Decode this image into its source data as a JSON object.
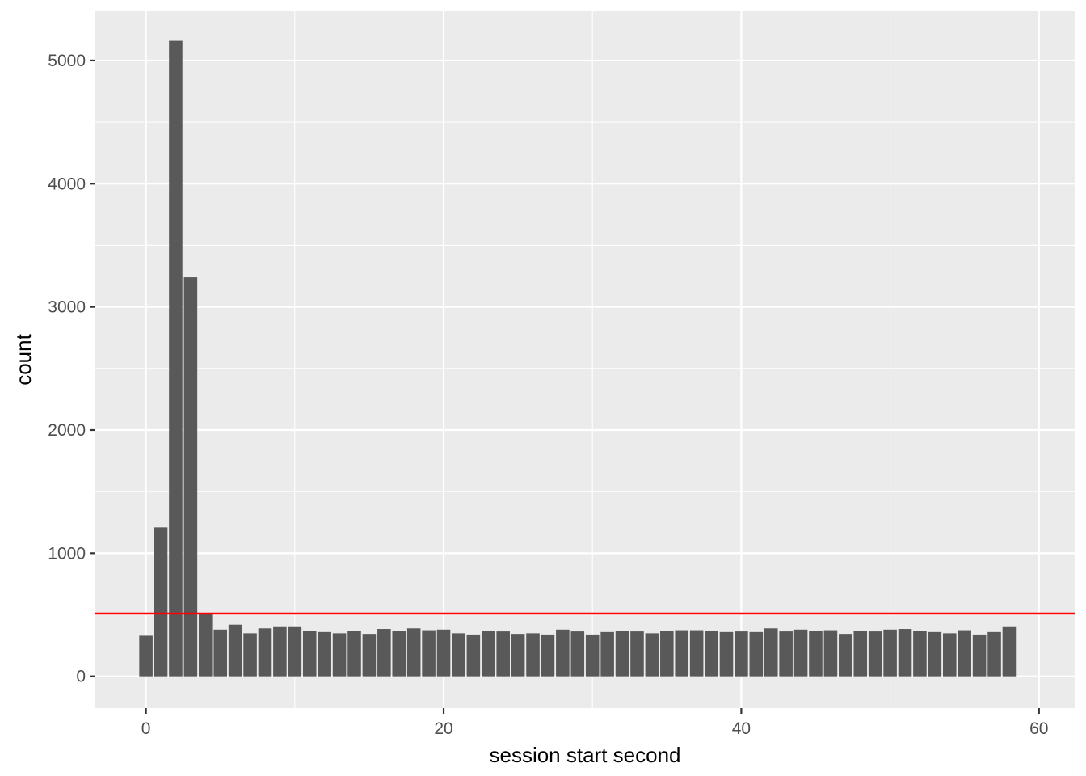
{
  "chart_data": {
    "type": "bar",
    "title": "",
    "xlabel": "session start second",
    "ylabel": "count",
    "xlim": [
      -3.4,
      62.4
    ],
    "ylim": [
      -258,
      5400
    ],
    "x_ticks": [
      0,
      20,
      40,
      60
    ],
    "y_ticks": [
      0,
      1000,
      2000,
      3000,
      4000,
      5000
    ],
    "x_tick_labels": [
      "0",
      "20",
      "40",
      "60"
    ],
    "y_tick_labels": [
      "0",
      "1000",
      "2000",
      "3000",
      "4000",
      "5000"
    ],
    "x": [
      0,
      1,
      2,
      3,
      4,
      5,
      6,
      7,
      8,
      9,
      10,
      11,
      12,
      13,
      14,
      15,
      16,
      17,
      18,
      19,
      20,
      21,
      22,
      23,
      24,
      25,
      26,
      27,
      28,
      29,
      30,
      31,
      32,
      33,
      34,
      35,
      36,
      37,
      38,
      39,
      40,
      41,
      42,
      43,
      44,
      45,
      46,
      47,
      48,
      49,
      50,
      51,
      52,
      53,
      54,
      55,
      56,
      57,
      58,
      59
    ],
    "values": [
      330,
      1210,
      5160,
      3240,
      510,
      380,
      420,
      350,
      390,
      400,
      400,
      370,
      360,
      350,
      370,
      345,
      385,
      370,
      390,
      375,
      380,
      350,
      340,
      370,
      365,
      345,
      350,
      340,
      380,
      365,
      340,
      360,
      370,
      365,
      350,
      370,
      375,
      375,
      370,
      360,
      365,
      360,
      390,
      365,
      380,
      370,
      375,
      345,
      370,
      365,
      380,
      385,
      370,
      360,
      350,
      375,
      340,
      360,
      400,
      0
    ],
    "bar_color": "#595959",
    "reference_line": {
      "y": 510,
      "color": "#ff0000"
    },
    "grid": true,
    "panel_background": "#ebebeb",
    "grid_color": "#ffffff",
    "legend": "none"
  }
}
